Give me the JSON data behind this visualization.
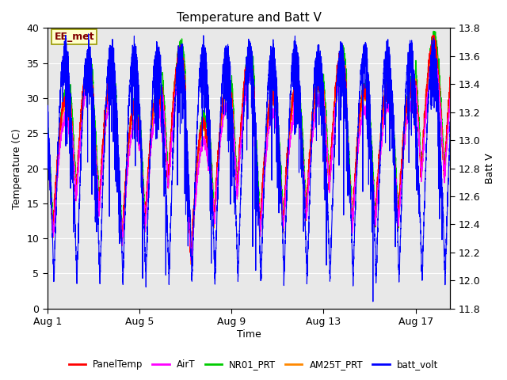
{
  "title": "Temperature and Batt V",
  "xlabel": "Time",
  "ylabel_left": "Temperature (C)",
  "ylabel_right": "Batt V",
  "ylim_left": [
    0,
    40
  ],
  "ylim_right": [
    11.8,
    13.8
  ],
  "xlim": [
    0,
    17.5
  ],
  "xtick_positions": [
    0,
    4,
    8,
    12,
    16
  ],
  "xtick_labels": [
    "Aug 1",
    "Aug 5",
    "Aug 9",
    "Aug 13",
    "Aug 17"
  ],
  "yticks_left": [
    0,
    5,
    10,
    15,
    20,
    25,
    30,
    35,
    40
  ],
  "yticks_right": [
    11.8,
    12.0,
    12.2,
    12.4,
    12.6,
    12.8,
    13.0,
    13.2,
    13.4,
    13.6,
    13.8
  ],
  "box_label": "EE_met",
  "box_text_color": "#800000",
  "box_bg_color": "#ffffcc",
  "box_edge_color": "#999900",
  "legend_items": [
    "PanelTemp",
    "AirT",
    "NR01_PRT",
    "AM25T_PRT",
    "batt_volt"
  ],
  "line_colors": [
    "#ff0000",
    "#ff00ff",
    "#00cc00",
    "#ff8800",
    "#0000ff"
  ],
  "bg_color": "#e8e8e8",
  "fig_bg_color": "#ffffff",
  "n_days": 18,
  "samples_per_day": 288
}
